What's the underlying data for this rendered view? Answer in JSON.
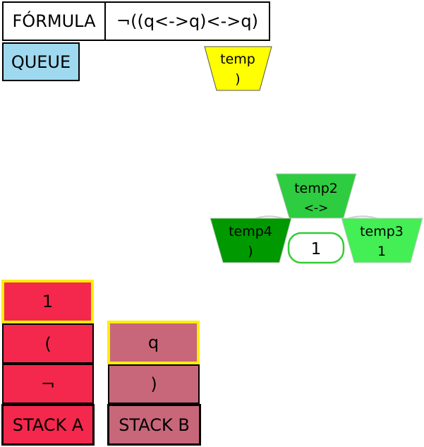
{
  "formula": {
    "label": "FÓRMULA",
    "value": "¬((q<->q)<->q)"
  },
  "queue": {
    "label": "QUEUE",
    "item": {
      "name": "temp",
      "value": ")"
    }
  },
  "tree": {
    "root": {
      "name": "temp2",
      "value": "<->"
    },
    "left": {
      "name": "temp4",
      "value": ")"
    },
    "right": {
      "name": "temp3",
      "value": "1"
    },
    "result": "1"
  },
  "stack_a": {
    "label": "STACK A",
    "items_top_to_bottom": [
      "1",
      "(",
      "¬"
    ]
  },
  "stack_b": {
    "label": "STACK B",
    "items_top_to_bottom": [
      "q",
      ")"
    ]
  },
  "colors": {
    "queue": "#9fd9ef",
    "temp_yellow": "#ffff00",
    "root_green": "#2ecc40",
    "left_green": "#009900",
    "right_green": "#44ee55",
    "stack_a": "#f4284c",
    "stack_b": "#c8677a",
    "top_highlight": "#ffee00"
  }
}
